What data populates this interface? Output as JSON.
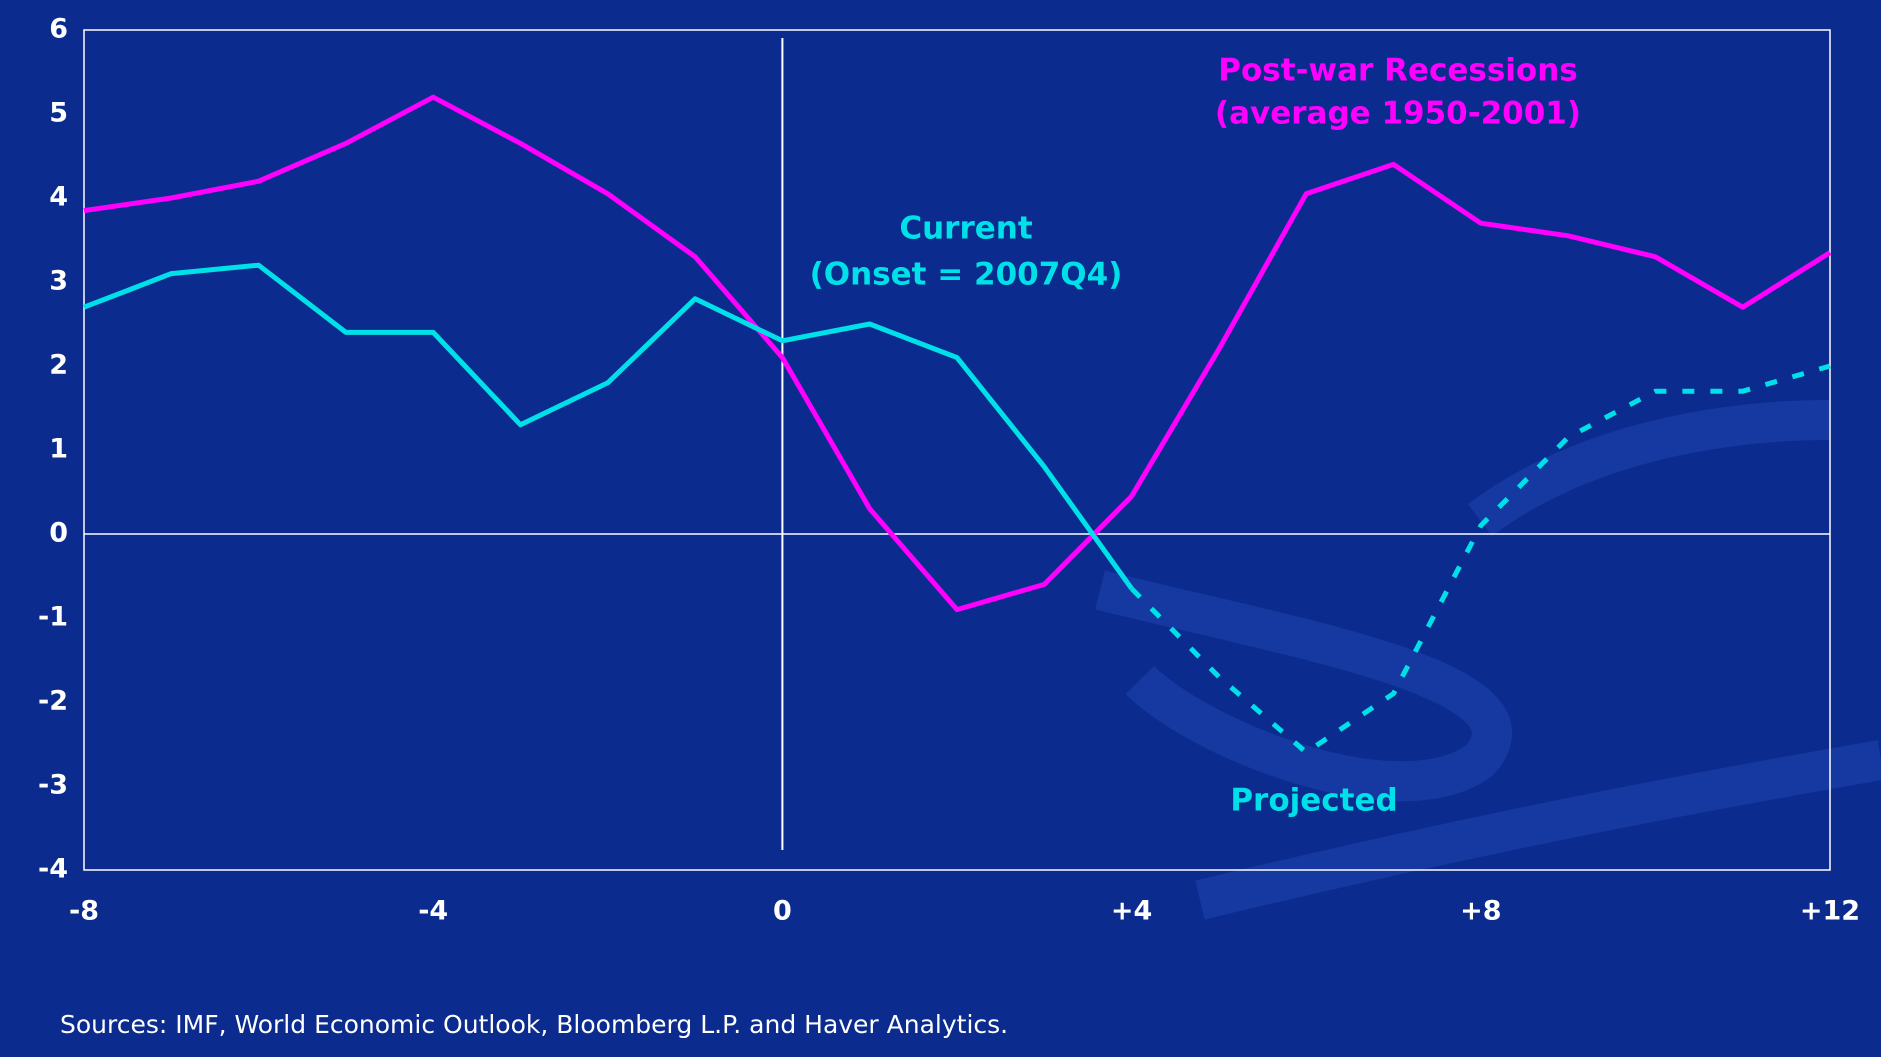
{
  "chart_data": {
    "type": "line",
    "x": [
      -8,
      -7,
      -6,
      -5,
      -4,
      -3,
      -2,
      -1,
      0,
      1,
      2,
      3,
      4,
      5,
      6,
      7,
      8,
      9,
      10,
      11,
      12
    ],
    "series": [
      {
        "name": "Post-war Recessions",
        "note": "(average 1950-2001)",
        "color": "#ff00ff",
        "dashed": false,
        "values": [
          3.85,
          4.0,
          4.2,
          4.65,
          5.2,
          4.65,
          4.05,
          3.3,
          2.1,
          0.3,
          -0.9,
          -0.6,
          0.45,
          2.2,
          4.05,
          4.4,
          3.7,
          3.55,
          3.3,
          2.7,
          3.35
        ]
      },
      {
        "name": "Current",
        "note": "(Onset = 2007Q4)",
        "color": "#00e0e8",
        "dashed": false,
        "values": [
          2.7,
          3.1,
          3.2,
          2.4,
          2.4,
          1.3,
          1.8,
          2.8,
          2.3,
          2.5,
          2.1,
          0.8,
          -0.65,
          null,
          null,
          null,
          null,
          null,
          null,
          null,
          null
        ]
      },
      {
        "name": "Projected",
        "color": "#00e0e8",
        "dashed": true,
        "values": [
          null,
          null,
          null,
          null,
          null,
          null,
          null,
          null,
          null,
          null,
          null,
          null,
          -0.65,
          -1.7,
          -2.6,
          -1.9,
          0.1,
          1.15,
          1.7,
          1.7,
          2.0
        ]
      }
    ],
    "xlim": [
      -8,
      12
    ],
    "xticks": [
      -8,
      -4,
      0,
      {
        "value": 4,
        "label": "+4"
      },
      {
        "value": 8,
        "label": "+8"
      },
      {
        "value": 12,
        "label": "+12"
      }
    ],
    "ylim": [
      -4,
      6
    ],
    "yticks": [
      -4,
      -3,
      -2,
      -1,
      0,
      1,
      2,
      3,
      4,
      5,
      6
    ],
    "source": "Sources: IMF, World Economic Outlook, Bloomberg L.P. and Haver Analytics."
  }
}
